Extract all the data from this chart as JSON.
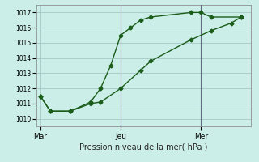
{
  "xlabel": "Pression niveau de la mer( hPa )",
  "background_color": "#cceee8",
  "grid_color": "#aacccc",
  "line_color": "#1a5c1a",
  "ylim": [
    1009.5,
    1017.5
  ],
  "yticks": [
    1010,
    1011,
    1012,
    1013,
    1014,
    1015,
    1016,
    1017
  ],
  "xtick_labels": [
    "Mar",
    "Jeu",
    "Mer"
  ],
  "xtick_positions": [
    0,
    4,
    8
  ],
  "series1_x": [
    0,
    0.5,
    1.5,
    2.5,
    3.0,
    3.5,
    4.0,
    4.5,
    5.0,
    5.5,
    7.5,
    8.0,
    8.5,
    10.0
  ],
  "series1_y": [
    1011.5,
    1010.5,
    1010.5,
    1011.1,
    1012.0,
    1013.5,
    1015.5,
    1016.0,
    1016.5,
    1016.7,
    1017.0,
    1017.0,
    1016.7,
    1016.7
  ],
  "series2_x": [
    0,
    0.5,
    1.5,
    2.5,
    3.0,
    4.0,
    5.0,
    5.5,
    7.5,
    8.5,
    9.5,
    10.0
  ],
  "series2_y": [
    1011.5,
    1010.5,
    1010.5,
    1011.0,
    1011.1,
    1012.0,
    1013.2,
    1013.8,
    1015.2,
    1015.8,
    1016.3,
    1016.7
  ],
  "vlines_x": [
    4.0,
    8.0
  ],
  "vline_color": "#666688",
  "marker": "D",
  "marker_size": 2.5,
  "linewidth": 1.0,
  "xlim": [
    -0.2,
    10.5
  ]
}
